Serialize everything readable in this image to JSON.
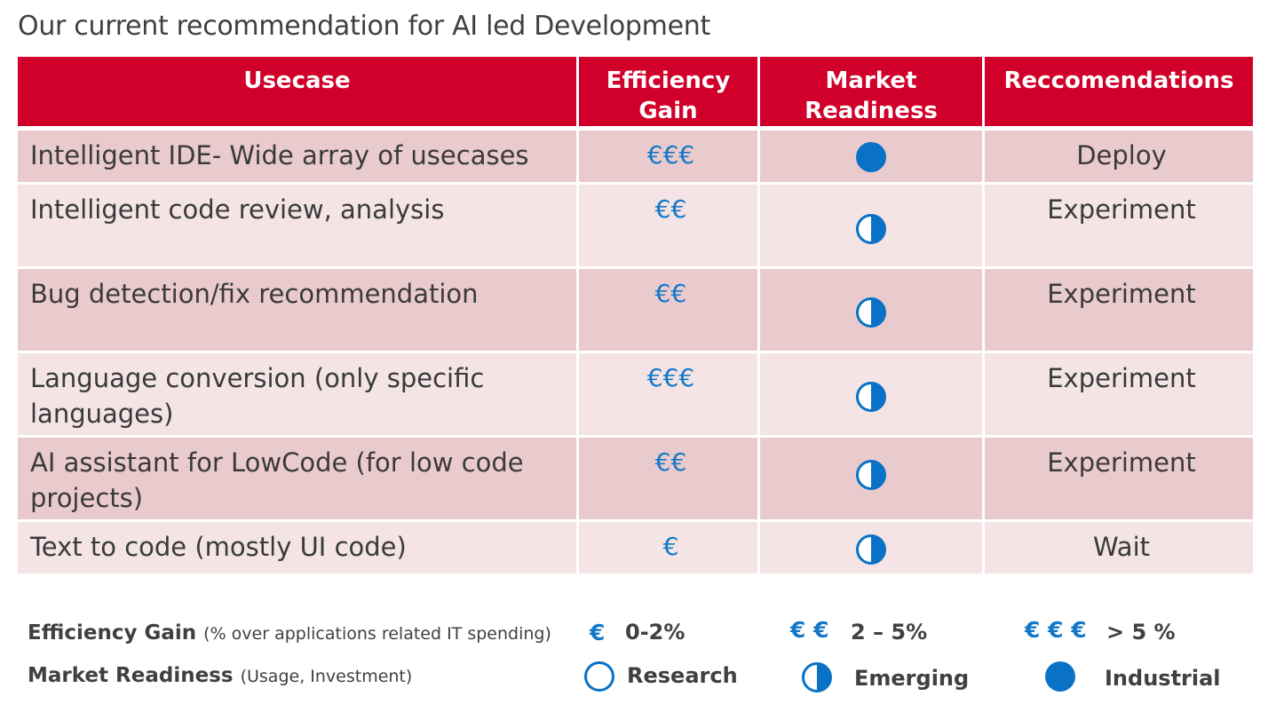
{
  "title": "Our current recommendation for AI led Development",
  "table": {
    "headers": {
      "usecase": "Usecase",
      "efficiency_line1": "Efficiency",
      "efficiency_line2": "Gain",
      "market_line1": "Market",
      "market_line2": "Readiness",
      "recommendations": "Reccomendations"
    },
    "rows": [
      {
        "usecase": "Intelligent IDE- Wide array of usecases",
        "gain": "€€€",
        "readiness": "Industrial",
        "recommendation": "Deploy"
      },
      {
        "usecase": "Intelligent code review, analysis",
        "gain": "€€",
        "readiness": "Emerging",
        "recommendation": "Experiment"
      },
      {
        "usecase": "Bug detection/fix recommendation",
        "gain": "€€",
        "readiness": "Emerging",
        "recommendation": "Experiment"
      },
      {
        "usecase": "Language conversion (only specific languages)",
        "gain": "€€€",
        "readiness": "Emerging",
        "recommendation": "Experiment"
      },
      {
        "usecase": "AI assistant for LowCode (for low code projects)",
        "gain": "€€",
        "readiness": "Emerging",
        "recommendation": "Experiment"
      },
      {
        "usecase": "Text to code (mostly UI code)",
        "gain": "€",
        "readiness": "Emerging",
        "recommendation": "Wait"
      }
    ]
  },
  "legend": {
    "efficiency": {
      "label": "Efficiency Gain",
      "sub": "(% over applications related IT spending)",
      "levels": [
        {
          "symbol": "€",
          "text": "0-2%"
        },
        {
          "symbol": "€ €",
          "text": "2 – 5%"
        },
        {
          "symbol": "€ € €",
          "text": "> 5 %"
        }
      ]
    },
    "readiness": {
      "label": "Market Readiness",
      "sub": "(Usage, Investment)",
      "levels": [
        {
          "icon": "empty-circle-icon",
          "text": "Research"
        },
        {
          "icon": "half-circle-icon",
          "text": "Emerging"
        },
        {
          "icon": "full-circle-icon",
          "text": "Industrial"
        }
      ]
    }
  },
  "colors": {
    "header_red": "#d0002a",
    "row_dark": "#eacbcd",
    "row_light": "#f4e4e5",
    "accent_blue": "#0a72c6"
  }
}
